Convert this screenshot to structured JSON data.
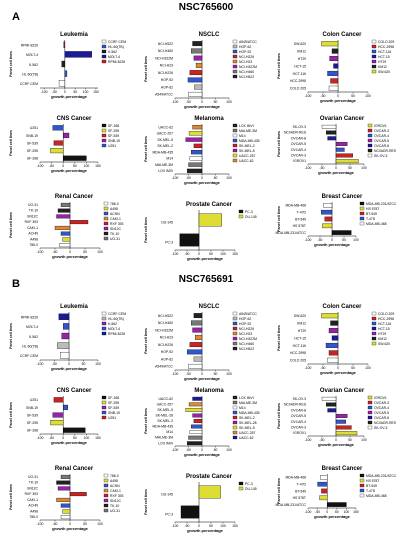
{
  "panels": [
    {
      "label": "A",
      "compound": "NSC765600",
      "charts": [
        {
          "type": "bar",
          "title": "Leukemia",
          "xlabel": "growth percentage",
          "ylabel": "Panel cell lines",
          "categories": [
            "CCRF-CEM",
            "HL-60(TB)",
            "K-562",
            "MOLT-4",
            "RPMI-8226"
          ],
          "values": [
            -28,
            10,
            -15,
            130,
            -5
          ],
          "colors": [
            "#ffffff",
            "#3355cc",
            "#222222",
            "#1b1b99",
            "#cc2222"
          ],
          "ticks": [
            -100,
            -50,
            0,
            50,
            100,
            150
          ],
          "xlim": [
            -120,
            160
          ],
          "legend": "right"
        },
        {
          "type": "bar",
          "title": "NSCLC",
          "xlabel": "growth percentage",
          "ylabel": "Panel cell lines",
          "categories": [
            "A549/ATCC",
            "HOP-62",
            "HOP-92",
            "NCI-H226",
            "NCI-H23",
            "NCI-H322M",
            "NCI-H460",
            "NCI-H522"
          ],
          "values": [
            -50,
            -28,
            -52,
            -45,
            -22,
            -30,
            -40,
            -35
          ],
          "colors": [
            "#ffffff",
            "#bbbbbb",
            "#3355cc",
            "#cc2222",
            "#dd8833",
            "#9922aa",
            "#777777",
            "#222222"
          ],
          "ticks": [
            -100,
            -50,
            0,
            50,
            100
          ],
          "xlim": [
            -100,
            100
          ],
          "legend": "right"
        },
        {
          "type": "bar",
          "title": "Colon Cancer",
          "xlabel": "growth percentage",
          "ylabel": "Panel cell lines",
          "categories": [
            "COLO 205",
            "HCC-2998",
            "HCT-116",
            "HCT-15",
            "HT29",
            "KM12",
            "SW-620"
          ],
          "values": [
            -30,
            -25,
            -35,
            -15,
            -28,
            -20,
            -55
          ],
          "colors": [
            "#ffffff",
            "#cc2222",
            "#3355cc",
            "#1b1b99",
            "#9922aa",
            "#222222",
            "#dddd33"
          ],
          "ticks": [
            -100,
            -50,
            0,
            50,
            100
          ],
          "xlim": [
            -100,
            100
          ],
          "legend": "right"
        },
        {
          "type": "bar",
          "title": "CNS Cancer",
          "xlabel": "growth percentage",
          "ylabel": "Panel cell lines",
          "categories": [
            "SF-268",
            "SF-295",
            "SF-539",
            "SNB-19",
            "U251"
          ],
          "values": [
            100,
            -55,
            -40,
            25,
            -45
          ],
          "colors": [
            "#111111",
            "#dddd33",
            "#cc2222",
            "#9922aa",
            "#3355cc"
          ],
          "ticks": [
            -100,
            -50,
            0,
            50,
            100,
            150
          ],
          "xlim": [
            -100,
            150
          ],
          "legend": "right"
        },
        {
          "type": "bar",
          "title": "Melanoma",
          "xlabel": "growth percentage",
          "ylabel": "Panel cell lines",
          "categories": [
            "LOX IMVI",
            "MALME-3M",
            "M14",
            "MDA-MB-435",
            "SK-MEL-2",
            "SK-MEL-5",
            "UACC-257",
            "UACC-62"
          ],
          "values": [
            -55,
            -50,
            -45,
            -40,
            -30,
            -60,
            -48,
            -35
          ],
          "colors": [
            "#222222",
            "#777777",
            "#ffffff",
            "#3355cc",
            "#cc2222",
            "#9922aa",
            "#dddd33",
            "#dd8833"
          ],
          "ticks": [
            -100,
            -50,
            0,
            50,
            100
          ],
          "xlim": [
            -100,
            100
          ],
          "legend": "right"
        },
        {
          "type": "bar",
          "title": "Ovarian Cancer",
          "xlabel": "growth percentage",
          "ylabel": "Panel cell lines",
          "categories": [
            "IGROV1",
            "OVCAR-3",
            "OVCAR-4",
            "OVCAR-5",
            "OVCAR-8",
            "NCI/ADR-RES",
            "SK-OV-3"
          ],
          "values": [
            80,
            60,
            30,
            40,
            -30,
            -35,
            -50
          ],
          "colors": [
            "#dddd33",
            "#cc2222",
            "#3355cc",
            "#9922aa",
            "#1b1b99",
            "#222222",
            "#ffffff"
          ],
          "ticks": [
            -100,
            -50,
            0,
            50,
            100
          ],
          "xlim": [
            -100,
            100
          ],
          "legend": "right"
        },
        {
          "type": "bar",
          "title": "Renal Cancer",
          "xlabel": "growth percentage",
          "ylabel": "Panel cell lines",
          "categories": [
            "786-0",
            "A498",
            "ACHN",
            "CAKI-1",
            "RXF 393",
            "SN12C",
            "TK-10",
            "UO-31"
          ],
          "values": [
            -35,
            -25,
            -30,
            -50,
            60,
            -45,
            -40,
            -30
          ],
          "colors": [
            "#ffffff",
            "#dddd33",
            "#3355cc",
            "#dd8833",
            "#cc2222",
            "#9922aa",
            "#222222",
            "#777777"
          ],
          "ticks": [
            -100,
            -50,
            0,
            50,
            100
          ],
          "xlim": [
            -100,
            100
          ],
          "legend": "right"
        },
        {
          "type": "bar",
          "title": "Prostate Cancer",
          "xlabel": "growth percentage",
          "ylabel": "Panel cell lines",
          "categories": [
            "PC-3",
            "DU-145"
          ],
          "values": [
            -80,
            95
          ],
          "colors": [
            "#111111",
            "#dddd33"
          ],
          "ticks": [
            -100,
            -50,
            0,
            50,
            100,
            150
          ],
          "xlim": [
            -100,
            150
          ],
          "legend": "right"
        },
        {
          "type": "bar",
          "title": "Breast Cancer",
          "xlabel": "growth percentage",
          "ylabel": "Panel cell lines",
          "categories": [
            "MDA-MB-231/ATCC",
            "HS 578T",
            "BT-549",
            "T-47D",
            "MDA-MB-468"
          ],
          "values": [
            80,
            -40,
            -30,
            -45,
            -35
          ],
          "colors": [
            "#111111",
            "#dddd33",
            "#cc2222",
            "#3355cc",
            "#ffffff"
          ],
          "ticks": [
            -100,
            -50,
            0,
            50,
            100
          ],
          "xlim": [
            -100,
            100
          ],
          "legend": "right"
        }
      ]
    },
    {
      "label": "B",
      "compound": "NSC765691",
      "charts": [
        {
          "type": "bar",
          "title": "Leukemia",
          "xlabel": "growth percentage",
          "ylabel": "Panel cell lines",
          "categories": [
            "CCRF-CEM",
            "HL-60(TB)",
            "K-562",
            "MOLT-4",
            "RPMI-8226"
          ],
          "values": [
            -30,
            -40,
            -25,
            -20,
            -35
          ],
          "colors": [
            "#ffffff",
            "#bbbbbb",
            "#9922aa",
            "#3355cc",
            "#1b1b99"
          ],
          "ticks": [
            -100,
            -50,
            0,
            50,
            100
          ],
          "xlim": [
            -100,
            100
          ],
          "legend": "right"
        },
        {
          "type": "bar",
          "title": "NSCLC",
          "xlabel": "growth percentage",
          "ylabel": "Panel cell lines",
          "categories": [
            "A549/ATCC",
            "HOP-62",
            "HOP-92",
            "NCI-H226",
            "NCI-H23",
            "NCI-H322M",
            "NCI-H460",
            "NCI-H522"
          ],
          "values": [
            -50,
            -30,
            -55,
            -45,
            -25,
            -35,
            -40,
            -30
          ],
          "colors": [
            "#ffffff",
            "#bbbbbb",
            "#3355cc",
            "#cc2222",
            "#dd8833",
            "#9922aa",
            "#777777",
            "#222222"
          ],
          "ticks": [
            -100,
            -50,
            0,
            50,
            100
          ],
          "xlim": [
            -100,
            100
          ],
          "legend": "right"
        },
        {
          "type": "bar",
          "title": "Colon Cancer",
          "xlabel": "growth percentage",
          "ylabel": "Panel cell lines",
          "categories": [
            "COLO 205",
            "HCC-2998",
            "HCT-116",
            "HCT-15",
            "HT29",
            "KM12",
            "SW-620"
          ],
          "values": [
            -35,
            -30,
            -40,
            -20,
            -30,
            -25,
            -55
          ],
          "colors": [
            "#ffffff",
            "#cc2222",
            "#3355cc",
            "#1b1b99",
            "#9922aa",
            "#222222",
            "#dddd33"
          ],
          "ticks": [
            -100,
            -50,
            0,
            50,
            100
          ],
          "xlim": [
            -100,
            100
          ],
          "legend": "right"
        },
        {
          "type": "bar",
          "title": "CNS Cancer",
          "xlabel": "growth percentage",
          "ylabel": "Panel cell lines",
          "categories": [
            "SF-268",
            "SF-295",
            "SF-539",
            "SNB-19",
            "U251"
          ],
          "values": [
            95,
            -55,
            -45,
            20,
            -40
          ],
          "colors": [
            "#111111",
            "#dddd33",
            "#9922aa",
            "#3355cc",
            "#cc2222"
          ],
          "ticks": [
            -100,
            -50,
            0,
            50,
            100,
            150
          ],
          "xlim": [
            -100,
            150
          ],
          "legend": "right"
        },
        {
          "type": "bar",
          "title": "Melanoma",
          "xlabel": "growth percentage",
          "ylabel": "Panel cell lines",
          "categories": [
            "LOX IMVI",
            "MALME-3M",
            "M14",
            "MDA-MB-435",
            "SK-MEL-2",
            "SK-MEL-28",
            "SK-MEL-5",
            "UACC-257",
            "UACC-62"
          ],
          "values": [
            -55,
            -50,
            -45,
            -40,
            -30,
            -35,
            -60,
            -48,
            -35
          ],
          "colors": [
            "#222222",
            "#777777",
            "#ffffff",
            "#3355cc",
            "#cc2222",
            "#9922aa",
            "#dddd33",
            "#dd8833",
            "#1b1b99"
          ],
          "ticks": [
            -100,
            -50,
            0,
            50,
            100
          ],
          "xlim": [
            -100,
            100
          ],
          "legend": "right"
        },
        {
          "type": "bar",
          "title": "Ovarian Cancer",
          "xlabel": "growth percentage",
          "ylabel": "Panel cell lines",
          "categories": [
            "IGROV1",
            "OVCAR-3",
            "OVCAR-4",
            "OVCAR-5",
            "OVCAR-8",
            "NCI/ADR-RES",
            "SK-OV-3"
          ],
          "values": [
            75,
            55,
            35,
            40,
            -30,
            -35,
            -50
          ],
          "colors": [
            "#dddd33",
            "#cc2222",
            "#3355cc",
            "#9922aa",
            "#1b1b99",
            "#222222",
            "#ffffff"
          ],
          "ticks": [
            -100,
            -50,
            0,
            50,
            100
          ],
          "xlim": [
            -100,
            100
          ],
          "legend": "right"
        },
        {
          "type": "bar",
          "title": "Renal Cancer",
          "xlabel": "growth percentage",
          "ylabel": "Panel cell lines",
          "categories": [
            "786-0",
            "A498",
            "ACHN",
            "CAKI-1",
            "RXF 393",
            "SN12C",
            "TK-10",
            "UO-31"
          ],
          "values": [
            -30,
            -25,
            -30,
            -45,
            55,
            -40,
            -45,
            -30
          ],
          "colors": [
            "#ffffff",
            "#dddd33",
            "#3355cc",
            "#dd8833",
            "#cc2222",
            "#9922aa",
            "#222222",
            "#777777"
          ],
          "ticks": [
            -100,
            -50,
            0,
            50,
            100
          ],
          "xlim": [
            -100,
            100
          ],
          "legend": "right"
        },
        {
          "type": "bar",
          "title": "Prostate Cancer",
          "xlabel": "growth percentage",
          "ylabel": "Panel cell lines",
          "categories": [
            "PC-3",
            "DU-145"
          ],
          "values": [
            -75,
            90
          ],
          "colors": [
            "#111111",
            "#dddd33"
          ],
          "ticks": [
            -100,
            -50,
            0,
            50,
            100,
            150
          ],
          "xlim": [
            -100,
            150
          ],
          "legend": "right"
        },
        {
          "type": "bar",
          "title": "Breast Cancer",
          "xlabel": "growth percentage",
          "ylabel": "Panel cell lines",
          "categories": [
            "MDA-MB-231/ATCC",
            "HS 578T",
            "BT-549",
            "T-47D",
            "MDA-MB-468"
          ],
          "values": [
            100,
            -40,
            -30,
            -50,
            -35
          ],
          "colors": [
            "#111111",
            "#dddd33",
            "#cc2222",
            "#3355cc",
            "#ffffff"
          ],
          "ticks": [
            -100,
            -50,
            0,
            50,
            100,
            150
          ],
          "xlim": [
            -100,
            150
          ],
          "legend": "right"
        }
      ]
    }
  ]
}
